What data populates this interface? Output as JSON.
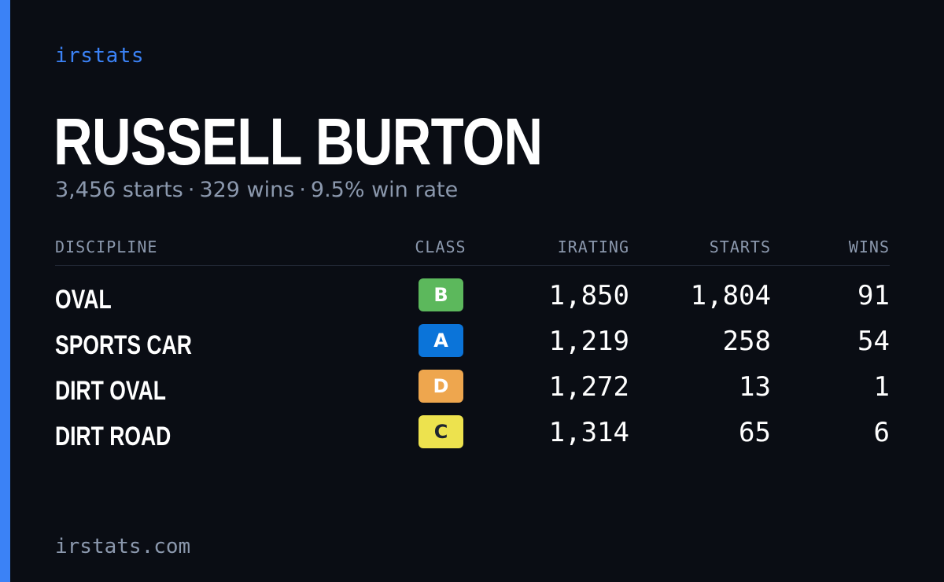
{
  "brand": "irstats",
  "driver": {
    "name": "RUSSELL BURTON",
    "starts_text": "3,456 starts",
    "wins_text": "329 wins",
    "winrate_text": "9.5% win rate",
    "separator": "·"
  },
  "table": {
    "headers": {
      "discipline": "DISCIPLINE",
      "class": "CLASS",
      "irating": "IRATING",
      "starts": "STARTS",
      "wins": "WINS"
    },
    "rows": [
      {
        "discipline": "OVAL",
        "class": "B",
        "class_color": "#5cb85c",
        "class_text_color": "#ffffff",
        "irating": "1,850",
        "starts": "1,804",
        "wins": "91"
      },
      {
        "discipline": "SPORTS CAR",
        "class": "A",
        "class_color": "#0b74d9",
        "class_text_color": "#ffffff",
        "irating": "1,219",
        "starts": "258",
        "wins": "54"
      },
      {
        "discipline": "DIRT OVAL",
        "class": "D",
        "class_color": "#eea64e",
        "class_text_color": "#ffffff",
        "irating": "1,272",
        "starts": "13",
        "wins": "1"
      },
      {
        "discipline": "DIRT ROAD",
        "class": "C",
        "class_color": "#ede24e",
        "class_text_color": "#1f2430",
        "irating": "1,314",
        "starts": "65",
        "wins": "6"
      }
    ]
  },
  "footer": "irstats.com",
  "colors": {
    "background": "#0a0d14",
    "accent": "#3b82f6",
    "muted_text": "#8b98ad"
  }
}
